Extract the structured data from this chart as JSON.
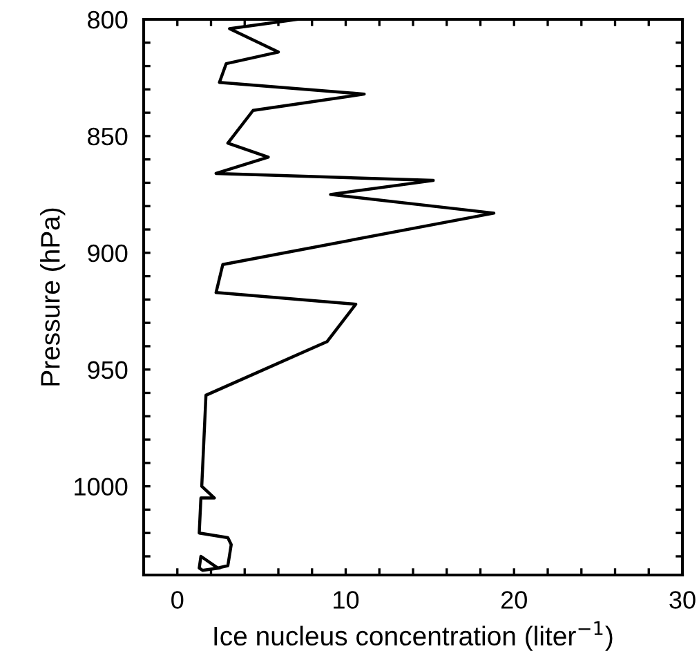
{
  "chart_data": {
    "type": "line",
    "xlabel": "Ice nucleus concentration (liter$^{−1}$)",
    "ylabel": "Pressure (hPa)",
    "x": [
      7.1,
      3.1,
      6.0,
      2.9,
      2.5,
      11.1,
      4.5,
      3.0,
      5.4,
      2.3,
      15.2,
      9.1,
      18.8,
      2.7,
      2.3,
      10.6,
      8.9,
      1.7,
      1.45,
      2.2,
      1.4,
      1.3,
      3.0,
      3.2,
      3.0,
      2.4,
      1.4,
      1.3,
      1.5,
      2.5
    ],
    "values": [
      800,
      804,
      814,
      819,
      827,
      832,
      839,
      853,
      859,
      866,
      869,
      875,
      883,
      905,
      917,
      922,
      938,
      961,
      1000,
      1005,
      1005,
      1020,
      1022,
      1025,
      1034,
      1035,
      1030,
      1035,
      1036,
      1035
    ],
    "color": "#000000",
    "marker": "none",
    "line_style": "solid",
    "grid": false,
    "xlim": [
      -2,
      30
    ],
    "ylim": [
      1038,
      800
    ],
    "xticks": [
      0,
      {
        "value": 2,
        "label": null
      },
      {
        "value": 4,
        "label": null
      },
      {
        "value": 6,
        "label": null
      },
      {
        "value": 8,
        "label": null
      },
      10,
      {
        "value": 12,
        "label": null
      },
      {
        "value": 14,
        "label": null
      },
      {
        "value": 16,
        "label": null
      },
      {
        "value": 18,
        "label": null
      },
      20,
      {
        "value": 22,
        "label": null
      },
      {
        "value": 24,
        "label": null
      },
      {
        "value": 26,
        "label": null
      },
      {
        "value": 28,
        "label": null
      },
      30
    ],
    "yticks": [
      800,
      {
        "value": 810,
        "label": null
      },
      {
        "value": 820,
        "label": null
      },
      {
        "value": 830,
        "label": null
      },
      {
        "value": 840,
        "label": null
      },
      850,
      {
        "value": 860,
        "label": null
      },
      {
        "value": 870,
        "label": null
      },
      {
        "value": 880,
        "label": null
      },
      {
        "value": 890,
        "label": null
      },
      900,
      {
        "value": 910,
        "label": null
      },
      {
        "value": 920,
        "label": null
      },
      {
        "value": 930,
        "label": null
      },
      {
        "value": 940,
        "label": null
      },
      950,
      {
        "value": 960,
        "label": null
      },
      {
        "value": 970,
        "label": null
      },
      {
        "value": 980,
        "label": null
      },
      {
        "value": 990,
        "label": null
      },
      1000,
      {
        "value": 1010,
        "label": null
      },
      {
        "value": 1020,
        "label": null
      },
      {
        "value": 1030,
        "label": null
      }
    ]
  }
}
